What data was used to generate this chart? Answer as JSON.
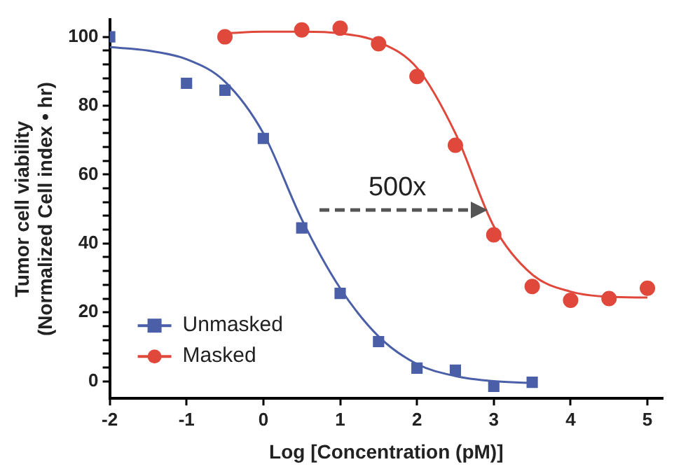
{
  "chart_data": {
    "type": "scatter",
    "xlabel": "Log [Concentration (pM)]",
    "ylabel": "Tumor cell viability\n(Normalized Cell index • hr)",
    "xlim": [
      -2,
      5.2
    ],
    "xticks": [
      -2,
      -1,
      0,
      1,
      2,
      3,
      4,
      5
    ],
    "ylim": [
      -5,
      105
    ],
    "yticks": [
      0,
      {
        "value": 4,
        "label": null
      },
      {
        "value": 8,
        "label": null
      },
      {
        "value": 12,
        "label": null
      },
      {
        "value": 16,
        "label": null
      },
      20,
      {
        "value": 24,
        "label": null
      },
      {
        "value": 28,
        "label": null
      },
      {
        "value": 32,
        "label": null
      },
      {
        "value": 36,
        "label": null
      },
      40,
      {
        "value": 44,
        "label": null
      },
      {
        "value": 48,
        "label": null
      },
      {
        "value": 52,
        "label": null
      },
      {
        "value": 56,
        "label": null
      },
      60,
      {
        "value": 64,
        "label": null
      },
      {
        "value": 68,
        "label": null
      },
      {
        "value": 72,
        "label": null
      },
      {
        "value": 76,
        "label": null
      },
      80,
      {
        "value": 84,
        "label": null
      },
      {
        "value": 88,
        "label": null
      },
      {
        "value": 92,
        "label": null
      },
      {
        "value": 96,
        "label": null
      },
      100
    ],
    "grid": false,
    "legend": "bottom left",
    "annotations": [
      "500x"
    ],
    "series": [
      {
        "name": "Unmasked",
        "marker": "square",
        "color": "#4a5fa8",
        "x": [
          -2,
          -1,
          -0.5,
          0,
          0.5,
          1,
          1.5,
          2,
          2.5,
          3,
          3.5
        ],
        "values": [
          100,
          86.5,
          84.5,
          70.5,
          44.5,
          25.5,
          11.5,
          3.8,
          3.2,
          -1.5,
          -0.3
        ]
      },
      {
        "name": "Masked",
        "marker": "circle",
        "color": "#e0483c",
        "x": [
          -0.5,
          0.5,
          1,
          1.5,
          2,
          2.5,
          3,
          3.5,
          4,
          4.5,
          5
        ],
        "values": [
          100,
          102,
          102.5,
          98,
          88.5,
          68.5,
          42.5,
          27.5,
          23.5,
          24,
          27
        ]
      },
      {
        "type": "line",
        "marker": "none",
        "color": "#4a5fa8",
        "x": [
          -2,
          -1.5,
          -1,
          -0.5,
          0,
          0.5,
          1,
          1.5,
          2,
          2.5,
          3,
          3.5
        ],
        "values": [
          97,
          96,
          93.5,
          87,
          72,
          47,
          27,
          13,
          5,
          1.5,
          0,
          -0.5
        ]
      },
      {
        "type": "line",
        "marker": "none",
        "color": "#e0483c",
        "x": [
          -0.5,
          0,
          0.5,
          1,
          1.5,
          2,
          2.5,
          3,
          3.5,
          4,
          4.5,
          5
        ],
        "values": [
          101,
          101.5,
          101.5,
          101,
          98.5,
          91,
          72,
          45,
          31,
          26,
          24.5,
          24.3
        ]
      }
    ]
  }
}
